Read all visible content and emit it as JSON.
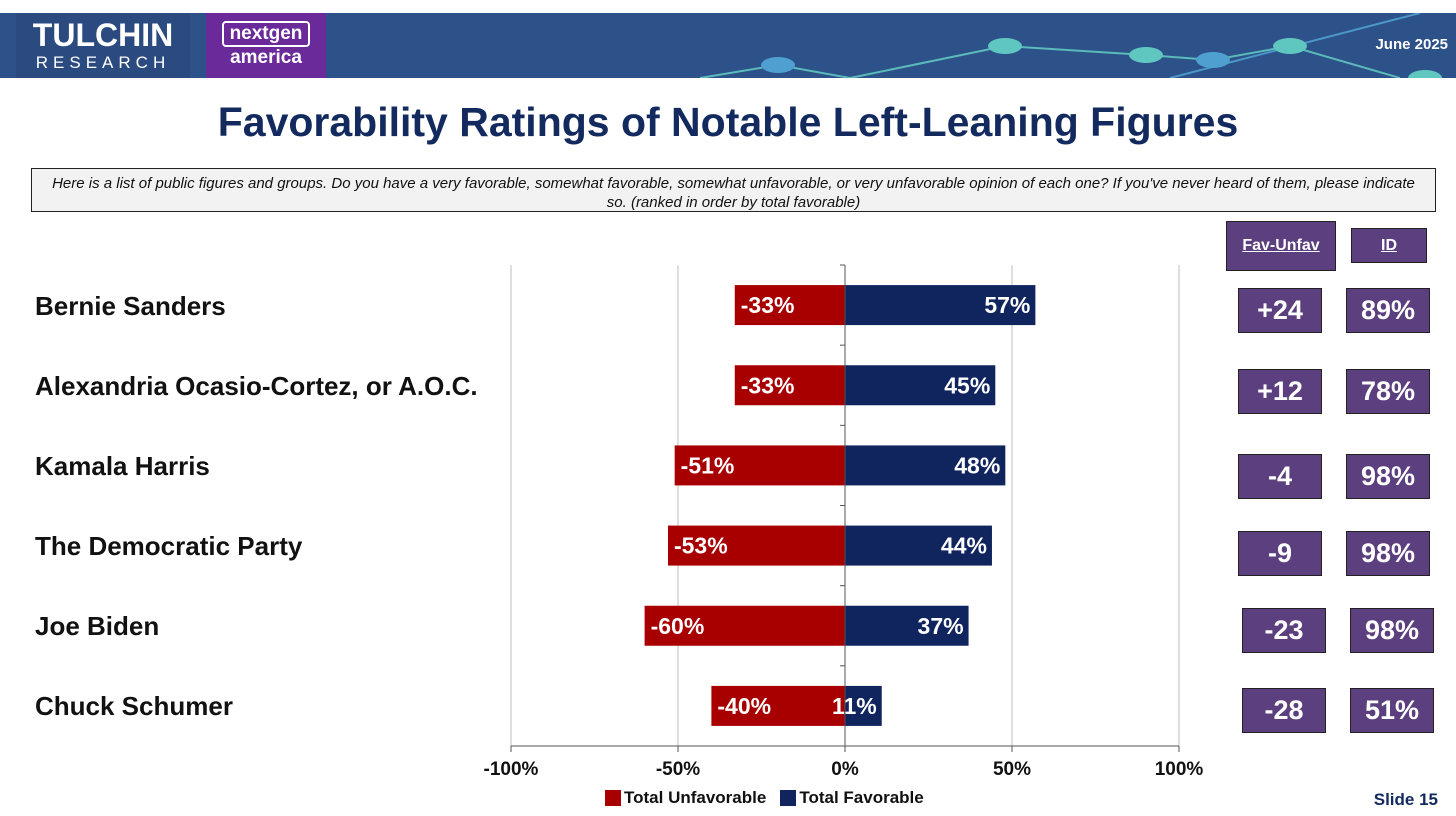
{
  "header": {
    "logo_main": "TULCHIN",
    "logo_sub": "RESEARCH",
    "partner_top": "nextgen",
    "partner_bottom": "america",
    "date": "June 2025"
  },
  "title": "Favorability Ratings of Notable Left-Leaning Figures",
  "question": "Here is a list of public figures and groups. Do you have a very favorable, somewhat favorable, somewhat unfavorable, or very unfavorable opinion of each one? If you've never heard of them, please indicate so. (ranked in order by total favorable)",
  "columns": {
    "net": "Fav-Unfav",
    "id": "ID"
  },
  "rows": [
    {
      "name": "Bernie Sanders",
      "net": "+24",
      "id": "89%"
    },
    {
      "name": "Alexandria Ocasio-Cortez, or A.O.C.",
      "net": "+12",
      "id": "78%"
    },
    {
      "name": "Kamala Harris",
      "net": "-4",
      "id": "98%"
    },
    {
      "name": "The Democratic Party",
      "net": "-9",
      "id": "98%"
    },
    {
      "name": "Joe Biden",
      "net": "-23",
      "id": "98%"
    },
    {
      "name": "Chuck Schumer",
      "net": "-28",
      "id": "51%"
    }
  ],
  "chart_data": {
    "type": "bar",
    "orientation": "horizontal",
    "stacked": "diverging",
    "categories": [
      "Bernie Sanders",
      "Alexandria Ocasio-Cortez, or A.O.C.",
      "Kamala Harris",
      "The Democratic Party",
      "Joe Biden",
      "Chuck Schumer"
    ],
    "series": [
      {
        "name": "Total Unfavorable",
        "color": "#a80000",
        "values": [
          -33,
          -33,
          -51,
          -53,
          -60,
          -40
        ],
        "labels": [
          "-33%",
          "-33%",
          "-51%",
          "-53%",
          "-60%",
          "-40%"
        ]
      },
      {
        "name": "Total Favorable",
        "color": "#10245e",
        "values": [
          57,
          45,
          48,
          44,
          37,
          11
        ],
        "labels": [
          "57%",
          "45%",
          "48%",
          "44%",
          "37%",
          "11%"
        ]
      }
    ],
    "xlim": [
      -100,
      100
    ],
    "xticks": [
      -100,
      -50,
      0,
      50,
      100
    ],
    "xtick_labels": [
      "-100%",
      "-50%",
      "0%",
      "50%",
      "100%"
    ],
    "grid": true,
    "legend": "bottom"
  },
  "footer": {
    "slide": "Slide 15"
  },
  "colors": {
    "header": "#2d5189",
    "title": "#132a5e",
    "box": "#5b3f7e",
    "unfavorable": "#a80000",
    "favorable": "#10245e"
  }
}
